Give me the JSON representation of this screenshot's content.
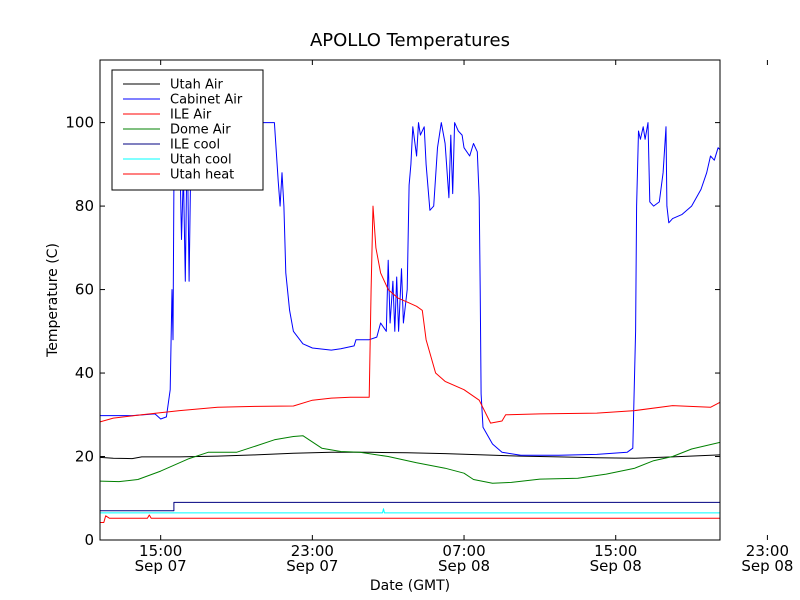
{
  "chart_data": {
    "type": "line",
    "title": "APOLLO Temperatures",
    "xlabel": "Date (GMT)",
    "ylabel": "Temperature (C)",
    "ylim": [
      0,
      115
    ],
    "xlim": [
      11.8,
      44.5
    ],
    "x_unit": "hours since 2008-09-07 00:00 GMT",
    "grid": false,
    "legend_position": "top-left",
    "yticks": [
      0,
      20,
      40,
      60,
      80,
      100
    ],
    "xticks": [
      {
        "value": 15,
        "line1": "15:00",
        "line2": "Sep 07"
      },
      {
        "value": 23,
        "line1": "23:00",
        "line2": "Sep 07"
      },
      {
        "value": 31,
        "line1": "07:00",
        "line2": "Sep 08"
      },
      {
        "value": 39,
        "line1": "15:00",
        "line2": "Sep 08"
      },
      {
        "value": 47,
        "line1": "23:00",
        "line2": "Sep 08"
      }
    ],
    "series": [
      {
        "name": "Utah Air",
        "color": "#000000",
        "points": [
          [
            11.8,
            19.8
          ],
          [
            12.5,
            19.6
          ],
          [
            13.5,
            19.5
          ],
          [
            14,
            19.9
          ],
          [
            16,
            19.9
          ],
          [
            18,
            20.1
          ],
          [
            20,
            20.4
          ],
          [
            22,
            20.8
          ],
          [
            24,
            21.0
          ],
          [
            26,
            21.0
          ],
          [
            28,
            20.9
          ],
          [
            30,
            20.7
          ],
          [
            32,
            20.4
          ],
          [
            34,
            20.1
          ],
          [
            36,
            19.9
          ],
          [
            38,
            19.7
          ],
          [
            40,
            19.6
          ],
          [
            42,
            19.9
          ],
          [
            44.5,
            20.4
          ]
        ]
      },
      {
        "name": "Cabinet Air",
        "color": "#0000ff",
        "points": [
          [
            11.8,
            29.8
          ],
          [
            13.5,
            29.8
          ],
          [
            14.7,
            30.2
          ],
          [
            15,
            29.0
          ],
          [
            15.3,
            29.5
          ],
          [
            15.5,
            36
          ],
          [
            15.6,
            60
          ],
          [
            15.65,
            48
          ],
          [
            15.7,
            85
          ],
          [
            15.8,
            100
          ],
          [
            16,
            95
          ],
          [
            16.1,
            72
          ],
          [
            16.2,
            88
          ],
          [
            16.3,
            62
          ],
          [
            16.4,
            98
          ],
          [
            16.5,
            62
          ],
          [
            16.6,
            94
          ],
          [
            16.8,
            96
          ],
          [
            17,
            100
          ],
          [
            19,
            100
          ],
          [
            21,
            100
          ],
          [
            21.2,
            86
          ],
          [
            21.3,
            80
          ],
          [
            21.4,
            88
          ],
          [
            21.5,
            80
          ],
          [
            21.6,
            64
          ],
          [
            21.8,
            55
          ],
          [
            22,
            50
          ],
          [
            22.5,
            47
          ],
          [
            23,
            46
          ],
          [
            24,
            45.5
          ],
          [
            24.5,
            45.8
          ],
          [
            25.2,
            46.5
          ],
          [
            25.3,
            48
          ],
          [
            26,
            48
          ],
          [
            26.4,
            48.6
          ],
          [
            26.6,
            52
          ],
          [
            26.9,
            50
          ],
          [
            27,
            67
          ],
          [
            27.1,
            52
          ],
          [
            27.25,
            62
          ],
          [
            27.35,
            50
          ],
          [
            27.45,
            63
          ],
          [
            27.55,
            50
          ],
          [
            27.7,
            65
          ],
          [
            27.8,
            52
          ],
          [
            28,
            60
          ],
          [
            28.1,
            85
          ],
          [
            28.2,
            90
          ],
          [
            28.3,
            99
          ],
          [
            28.5,
            92
          ],
          [
            28.6,
            100
          ],
          [
            28.7,
            97
          ],
          [
            28.9,
            99
          ],
          [
            29,
            90
          ],
          [
            29.2,
            79
          ],
          [
            29.4,
            80
          ],
          [
            29.6,
            94
          ],
          [
            29.8,
            100
          ],
          [
            30.0,
            95
          ],
          [
            30.2,
            82
          ],
          [
            30.3,
            97
          ],
          [
            30.4,
            83
          ],
          [
            30.5,
            100
          ],
          [
            30.7,
            98
          ],
          [
            30.9,
            97
          ],
          [
            31.0,
            94
          ],
          [
            31.3,
            92
          ],
          [
            31.5,
            95
          ],
          [
            31.7,
            93
          ],
          [
            31.8,
            82
          ],
          [
            31.85,
            60
          ],
          [
            31.9,
            35
          ],
          [
            32,
            27
          ],
          [
            32.5,
            23
          ],
          [
            33,
            21
          ],
          [
            34,
            20.3
          ],
          [
            36,
            20.3
          ],
          [
            38,
            20.5
          ],
          [
            39.6,
            21
          ],
          [
            39.9,
            22
          ],
          [
            40.05,
            50
          ],
          [
            40.1,
            80
          ],
          [
            40.2,
            98
          ],
          [
            40.3,
            96
          ],
          [
            40.45,
            99
          ],
          [
            40.55,
            96
          ],
          [
            40.7,
            100
          ],
          [
            40.8,
            81
          ],
          [
            41.0,
            80
          ],
          [
            41.3,
            81
          ],
          [
            41.5,
            88
          ],
          [
            41.65,
            99
          ],
          [
            41.7,
            80
          ],
          [
            41.8,
            76
          ],
          [
            42,
            77
          ],
          [
            42.5,
            78
          ],
          [
            43,
            80
          ],
          [
            43.5,
            84
          ],
          [
            43.8,
            88
          ],
          [
            44,
            92
          ],
          [
            44.2,
            91
          ],
          [
            44.4,
            94
          ],
          [
            44.5,
            93.5
          ]
        ]
      },
      {
        "name": "ILE Air",
        "color": "#ff0000",
        "points": [
          [
            11.8,
            28.3
          ],
          [
            12.5,
            29.2
          ],
          [
            14,
            30.0
          ],
          [
            16,
            31.0
          ],
          [
            18,
            31.8
          ],
          [
            20,
            32.0
          ],
          [
            22,
            32.1
          ],
          [
            23,
            33.5
          ],
          [
            24,
            34.0
          ],
          [
            25,
            34.2
          ],
          [
            26,
            34.2
          ],
          [
            26.1,
            60
          ],
          [
            26.2,
            80
          ],
          [
            26.35,
            70
          ],
          [
            26.6,
            64
          ],
          [
            27,
            60
          ],
          [
            27.5,
            58
          ],
          [
            28,
            57
          ],
          [
            28.5,
            56
          ],
          [
            28.8,
            55
          ],
          [
            29,
            48
          ],
          [
            29.5,
            40
          ],
          [
            30,
            38
          ],
          [
            31,
            36
          ],
          [
            31.8,
            33.5
          ],
          [
            32.4,
            28
          ],
          [
            33,
            28.5
          ],
          [
            33.2,
            30
          ],
          [
            35,
            30.2
          ],
          [
            38,
            30.4
          ],
          [
            40,
            31
          ],
          [
            42,
            32.2
          ],
          [
            44,
            31.8
          ],
          [
            44.5,
            33
          ]
        ]
      },
      {
        "name": "Dome Air",
        "color": "#008000",
        "points": [
          [
            11.8,
            14.1
          ],
          [
            12.8,
            14
          ],
          [
            13.8,
            14.5
          ],
          [
            15,
            16.5
          ],
          [
            16.5,
            19.5
          ],
          [
            17.5,
            21
          ],
          [
            19,
            21
          ],
          [
            20,
            22.5
          ],
          [
            21,
            24
          ],
          [
            22,
            24.8
          ],
          [
            22.5,
            25
          ],
          [
            23.5,
            22
          ],
          [
            24.5,
            21.2
          ],
          [
            25.5,
            21
          ],
          [
            27,
            20
          ],
          [
            28.5,
            18.5
          ],
          [
            30,
            17.2
          ],
          [
            31,
            16
          ],
          [
            31.5,
            14.5
          ],
          [
            32.5,
            13.6
          ],
          [
            33.5,
            13.8
          ],
          [
            35,
            14.6
          ],
          [
            37,
            14.8
          ],
          [
            38.5,
            15.8
          ],
          [
            40,
            17.2
          ],
          [
            41,
            19
          ],
          [
            42,
            20
          ],
          [
            43,
            21.8
          ],
          [
            44.5,
            23.4
          ]
        ]
      },
      {
        "name": "ILE cool",
        "color": "#000080",
        "points": [
          [
            11.8,
            7.0
          ],
          [
            15.7,
            7.0
          ],
          [
            15.7,
            9.0
          ],
          [
            44.5,
            9.0
          ]
        ]
      },
      {
        "name": "Utah cool",
        "color": "#00ffff",
        "points": [
          [
            11.8,
            6.5
          ],
          [
            26.7,
            6.5
          ],
          [
            26.75,
            7.5
          ],
          [
            26.8,
            6.5
          ],
          [
            44.5,
            6.5
          ]
        ]
      },
      {
        "name": "Utah heat",
        "color": "#ff0000",
        "points": [
          [
            11.8,
            4.2
          ],
          [
            12.0,
            4.2
          ],
          [
            12.1,
            5.8
          ],
          [
            12.3,
            5.2
          ],
          [
            14.3,
            5.2
          ],
          [
            14.4,
            6.0
          ],
          [
            14.5,
            5.2
          ],
          [
            44.5,
            5.2
          ]
        ]
      }
    ]
  }
}
